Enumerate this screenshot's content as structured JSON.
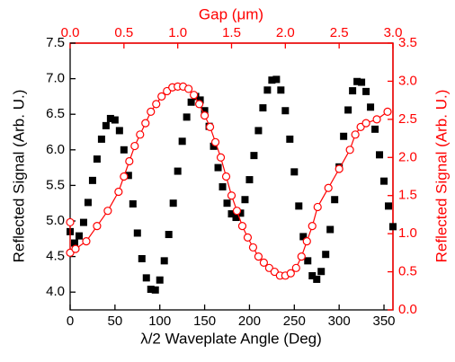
{
  "chart_data": {
    "type": "scatter",
    "xlabel": "λ/2 Waveplate Angle (Deg)",
    "ylabel": "Reflected Signal (Arb. U.)",
    "x2label": "Gap (μm)",
    "y2label": "Reflected Signal (Arb. U.)",
    "xlim": [
      0,
      360
    ],
    "xticks": [
      0,
      50,
      100,
      150,
      200,
      250,
      300,
      350
    ],
    "ylim": [
      3.75,
      7.5
    ],
    "yticks": [
      {
        "value": 4,
        "label": "4.0"
      },
      4.5,
      {
        "value": 5,
        "label": "5.0"
      },
      5.5,
      {
        "value": 6,
        "label": "6.0"
      },
      6.5,
      {
        "value": 7,
        "label": "7.0"
      },
      7.5
    ],
    "x2lim": [
      0,
      3
    ],
    "x2ticks": [
      {
        "value": 0,
        "label": "0.0"
      },
      0.5,
      {
        "value": 1,
        "label": "1.0"
      },
      1.5,
      {
        "value": 2,
        "label": "2.0"
      },
      2.5,
      {
        "value": 3,
        "label": "3.0"
      }
    ],
    "y2lim": [
      0,
      3.5
    ],
    "y2ticks": [
      {
        "value": 0,
        "label": "0.0"
      },
      0.5,
      {
        "value": 1,
        "label": "1.0"
      },
      1.5,
      {
        "value": 2,
        "label": "2.0"
      },
      2.5,
      {
        "value": 3,
        "label": "3.0"
      },
      3.5
    ],
    "y2color": "#ff0000",
    "series": [
      {
        "color": "#000000",
        "marker": "square",
        "line": false,
        "axis": "y",
        "xaxis": "x",
        "x": [
          0,
          5,
          10,
          15,
          20,
          25,
          30,
          35,
          40,
          45,
          50,
          55,
          60,
          65,
          70,
          75,
          80,
          85,
          90,
          95,
          100,
          105,
          110,
          115,
          120,
          125,
          130,
          135,
          140,
          145,
          150,
          155,
          160,
          165,
          170,
          175,
          180,
          185,
          190,
          195,
          200,
          205,
          210,
          215,
          220,
          225,
          230,
          235,
          240,
          245,
          250,
          255,
          260,
          265,
          270,
          275,
          280,
          285,
          290,
          295,
          300,
          305,
          310,
          315,
          320,
          325,
          330,
          335,
          340,
          345,
          350,
          355,
          360
        ],
        "values": [
          4.85,
          4.69,
          4.79,
          4.98,
          5.26,
          5.57,
          5.87,
          6.15,
          6.34,
          6.44,
          6.42,
          6.27,
          6.0,
          5.64,
          5.24,
          4.83,
          4.47,
          4.2,
          4.04,
          4.03,
          4.17,
          4.44,
          4.81,
          5.25,
          5.7,
          6.12,
          6.46,
          6.67,
          6.75,
          6.7,
          6.55,
          6.33,
          6.05,
          5.75,
          5.48,
          5.25,
          5.1,
          5.05,
          5.11,
          5.3,
          5.58,
          5.92,
          6.27,
          6.59,
          6.84,
          6.98,
          6.99,
          6.84,
          6.55,
          6.15,
          5.69,
          5.21,
          4.78,
          4.44,
          4.23,
          4.18,
          4.29,
          4.53,
          4.88,
          5.3,
          5.76,
          6.19,
          6.56,
          6.83,
          6.96,
          6.95,
          6.82,
          6.6,
          6.29,
          5.93,
          5.56,
          5.21,
          4.92
        ]
      },
      {
        "color": "#ff0000",
        "marker": "circle",
        "line": true,
        "axis": "y2",
        "xaxis": "x2",
        "x": [
          0,
          0,
          0.05,
          0.15,
          0.25,
          0.35,
          0.45,
          0.5,
          0.55,
          0.6,
          0.65,
          0.7,
          0.75,
          0.8,
          0.85,
          0.9,
          0.95,
          1.0,
          1.05,
          1.1,
          1.15,
          1.2,
          1.25,
          1.3,
          1.35,
          1.4,
          1.45,
          1.5,
          1.55,
          1.6,
          1.65,
          1.7,
          1.75,
          1.8,
          1.85,
          1.9,
          1.95,
          2.0,
          2.05,
          2.1,
          2.15,
          2.2,
          2.25,
          2.3,
          2.4,
          2.5,
          2.6,
          2.65,
          2.7,
          2.75,
          2.85,
          2.95
        ],
        "values": [
          1.15,
          0.75,
          0.8,
          0.9,
          1.1,
          1.3,
          1.55,
          1.75,
          1.95,
          2.15,
          2.3,
          2.45,
          2.6,
          2.7,
          2.8,
          2.87,
          2.92,
          2.93,
          2.93,
          2.9,
          2.82,
          2.7,
          2.55,
          2.4,
          2.2,
          2.0,
          1.75,
          1.5,
          1.3,
          1.1,
          0.95,
          0.82,
          0.7,
          0.62,
          0.55,
          0.5,
          0.45,
          0.45,
          0.48,
          0.55,
          0.7,
          0.9,
          1.1,
          1.35,
          1.6,
          1.85,
          2.1,
          2.3,
          2.4,
          2.45,
          2.5,
          2.6
        ]
      }
    ]
  }
}
